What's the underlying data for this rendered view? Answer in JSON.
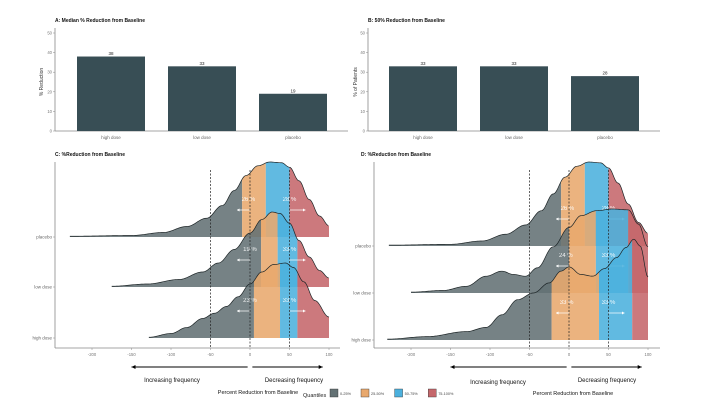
{
  "chart_data": [
    {
      "type": "bar",
      "id": "A",
      "title": "A: Median % Reduction from Baseline",
      "categories": [
        "high dose",
        "low dose",
        "placebo"
      ],
      "values": [
        38,
        33,
        19
      ],
      "value_labels": [
        "38",
        "33",
        "19"
      ],
      "ylabel": "% Reduction",
      "xlabel": "",
      "ylim": [
        0,
        50
      ],
      "yticks": [
        "0",
        "10",
        "20",
        "30",
        "40",
        "50"
      ],
      "color": "#384e55"
    },
    {
      "type": "bar",
      "id": "B",
      "title": "B: 50% Reduction from Baseline",
      "categories": [
        "high dose",
        "low dose",
        "placebo"
      ],
      "values": [
        33,
        33,
        28
      ],
      "value_labels": [
        "33",
        "33",
        "28"
      ],
      "ylabel": "% of Patients",
      "xlabel": "",
      "ylim": [
        0,
        50
      ],
      "yticks": [
        "0",
        "10",
        "20",
        "30",
        "40",
        "50"
      ],
      "color": "#384e55"
    },
    {
      "type": "area",
      "id": "C",
      "subtype": "ridgeline-density",
      "title": "C: %Reduction from Baseline",
      "xlabel": "Percent Reduction from Baseline",
      "xlim": [
        -250,
        110
      ],
      "xticks": [
        -200,
        -150,
        -100,
        -50,
        0,
        50,
        100
      ],
      "reference_lines": [
        -50,
        0,
        50
      ],
      "direction_labels": {
        "left": "Increasing frequency",
        "right": "Decreasing frequency"
      },
      "series": [
        {
          "name": "placebo",
          "min": -228,
          "max": 100,
          "quantile_breaks": [
            -10,
            20,
            50
          ],
          "density": [
            [
              -228,
              0.01
            ],
            [
              -150,
              0.02
            ],
            [
              -110,
              0.06
            ],
            [
              -80,
              0.14
            ],
            [
              -55,
              0.25
            ],
            [
              -35,
              0.42
            ],
            [
              -20,
              0.62
            ],
            [
              -5,
              0.82
            ],
            [
              10,
              0.95
            ],
            [
              25,
              1.0
            ],
            [
              40,
              0.99
            ],
            [
              50,
              0.93
            ],
            [
              62,
              0.75
            ],
            [
              75,
              0.5
            ],
            [
              88,
              0.28
            ],
            [
              100,
              0.15
            ]
          ],
          "labels": [
            {
              "text": "26 %",
              "x": -2
            },
            {
              "text": "28 %",
              "x": 50
            }
          ]
        },
        {
          "name": "low dose",
          "min": -175,
          "max": 100,
          "quantile_breaks": [
            14,
            35,
            60
          ],
          "density": [
            [
              -175,
              0.01
            ],
            [
              -130,
              0.04
            ],
            [
              -90,
              0.1
            ],
            [
              -60,
              0.2
            ],
            [
              -40,
              0.32
            ],
            [
              -20,
              0.5
            ],
            [
              0,
              0.72
            ],
            [
              15,
              0.9
            ],
            [
              28,
              1.0
            ],
            [
              38,
              0.98
            ],
            [
              50,
              0.85
            ],
            [
              62,
              0.62
            ],
            [
              75,
              0.4
            ],
            [
              88,
              0.22
            ],
            [
              100,
              0.12
            ]
          ],
          "labels": [
            {
              "text": "19 %",
              "x": 0
            },
            {
              "text": "33 %",
              "x": 50
            }
          ]
        },
        {
          "name": "high dose",
          "min": -128,
          "max": 100,
          "quantile_breaks": [
            5,
            38,
            60
          ],
          "density": [
            [
              -128,
              0.01
            ],
            [
              -100,
              0.06
            ],
            [
              -80,
              0.14
            ],
            [
              -60,
              0.26
            ],
            [
              -45,
              0.33
            ],
            [
              -30,
              0.42
            ],
            [
              -15,
              0.55
            ],
            [
              0,
              0.72
            ],
            [
              15,
              0.88
            ],
            [
              30,
              0.98
            ],
            [
              45,
              1.0
            ],
            [
              55,
              0.94
            ],
            [
              68,
              0.75
            ],
            [
              82,
              0.5
            ],
            [
              100,
              0.28
            ]
          ],
          "labels": [
            {
              "text": "23 %",
              "x": 0
            },
            {
              "text": "33 %",
              "x": 50
            }
          ]
        }
      ]
    },
    {
      "type": "area",
      "id": "D",
      "subtype": "ridgeline-density",
      "title": "D: %Reduction from Baseline",
      "xlabel": "Percent Reduction from Baseline",
      "xlim": [
        -250,
        110
      ],
      "xticks": [
        -200,
        -150,
        -100,
        -50,
        0,
        50,
        100
      ],
      "reference_lines": [
        -50,
        0,
        50
      ],
      "direction_labels": {
        "left": "Increasing frequency",
        "right": "Decreasing frequency"
      },
      "series": [
        {
          "name": "placebo",
          "min": -228,
          "max": 100,
          "quantile_breaks": [
            -10,
            20,
            50
          ],
          "density": [
            [
              -228,
              0.01
            ],
            [
              -150,
              0.02
            ],
            [
              -110,
              0.06
            ],
            [
              -80,
              0.14
            ],
            [
              -55,
              0.25
            ],
            [
              -35,
              0.42
            ],
            [
              -20,
              0.62
            ],
            [
              -5,
              0.82
            ],
            [
              10,
              0.95
            ],
            [
              25,
              1.0
            ],
            [
              40,
              0.99
            ],
            [
              50,
              0.93
            ],
            [
              62,
              0.75
            ],
            [
              75,
              0.5
            ],
            [
              88,
              0.28
            ],
            [
              100,
              0.15
            ]
          ],
          "labels": [
            {
              "text": "26 %",
              "x": -2
            },
            {
              "text": "28 %",
              "x": 50
            }
          ]
        },
        {
          "name": "low dose",
          "min": -200,
          "max": 100,
          "quantile_breaks": [
            0,
            34,
            75
          ],
          "density": [
            [
              -200,
              0.01
            ],
            [
              -160,
              0.03
            ],
            [
              -130,
              0.08
            ],
            [
              -105,
              0.2
            ],
            [
              -85,
              0.26
            ],
            [
              -70,
              0.22
            ],
            [
              -55,
              0.2
            ],
            [
              -40,
              0.3
            ],
            [
              -20,
              0.55
            ],
            [
              0,
              0.78
            ],
            [
              15,
              0.92
            ],
            [
              35,
              0.98
            ],
            [
              55,
              1.0
            ],
            [
              75,
              0.99
            ],
            [
              88,
              0.82
            ],
            [
              100,
              0.55
            ]
          ],
          "labels": [
            {
              "text": "24 %",
              "x": -4
            },
            {
              "text": "33 %",
              "x": 50
            }
          ]
        },
        {
          "name": "high dose",
          "min": -230,
          "max": 100,
          "quantile_breaks": [
            -22,
            38,
            80
          ],
          "density": [
            [
              -230,
              0.01
            ],
            [
              -180,
              0.04
            ],
            [
              -130,
              0.1
            ],
            [
              -105,
              0.15
            ],
            [
              -85,
              0.3
            ],
            [
              -65,
              0.48
            ],
            [
              -45,
              0.56
            ],
            [
              -25,
              0.68
            ],
            [
              -10,
              0.82
            ],
            [
              0,
              0.87
            ],
            [
              15,
              0.78
            ],
            [
              30,
              0.76
            ],
            [
              45,
              0.85
            ],
            [
              60,
              0.98
            ],
            [
              72,
              1.1
            ],
            [
              82,
              1.2
            ],
            [
              90,
              1.12
            ],
            [
              100,
              0.75
            ]
          ],
          "labels": [
            {
              "text": "33 %",
              "x": -3
            },
            {
              "text": "33 %",
              "x": 50
            }
          ]
        }
      ]
    }
  ],
  "legend": {
    "title": "Quantiles",
    "items": [
      {
        "label": "0-25%",
        "color": "#637174"
      },
      {
        "label": "25-50%",
        "color": "#e8a86d"
      },
      {
        "label": "50-75%",
        "color": "#4bb0dd"
      },
      {
        "label": "75-100%",
        "color": "#c5676b"
      }
    ]
  }
}
